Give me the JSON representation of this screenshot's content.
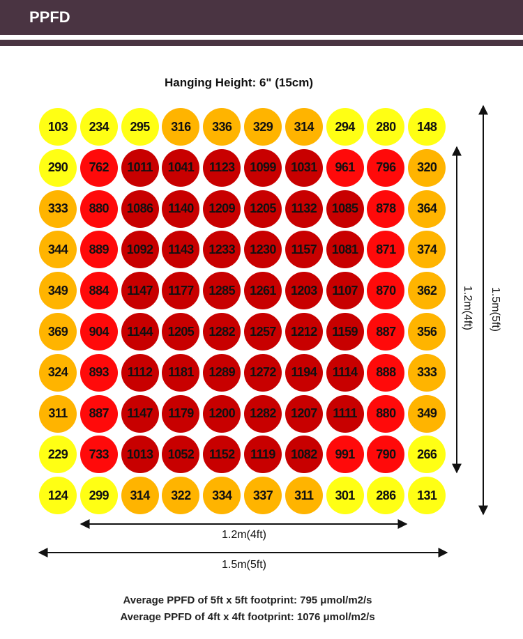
{
  "header": {
    "title": "PPFD"
  },
  "colors": {
    "header_bg": "#4a3442",
    "low": "#ffff14",
    "mid": "#ffb400",
    "high": "#ff0a0a",
    "very_high": "#c80000"
  },
  "chart_data": {
    "type": "heatmap",
    "title": "Hanging Height: 6\" (15cm)",
    "rows": [
      [
        103,
        234,
        295,
        316,
        336,
        329,
        314,
        294,
        280,
        148
      ],
      [
        290,
        762,
        1011,
        1041,
        1123,
        1099,
        1031,
        961,
        796,
        320
      ],
      [
        333,
        880,
        1086,
        1140,
        1209,
        1205,
        1132,
        1085,
        878,
        364
      ],
      [
        344,
        889,
        1092,
        1143,
        1233,
        1230,
        1157,
        1081,
        871,
        374
      ],
      [
        349,
        884,
        1147,
        1177,
        1285,
        1261,
        1203,
        1107,
        870,
        362
      ],
      [
        369,
        904,
        1144,
        1205,
        1282,
        1257,
        1212,
        1159,
        887,
        356
      ],
      [
        324,
        893,
        1112,
        1181,
        1289,
        1272,
        1194,
        1114,
        888,
        333
      ],
      [
        311,
        887,
        1147,
        1179,
        1200,
        1282,
        1207,
        1111,
        880,
        349
      ],
      [
        229,
        733,
        1013,
        1052,
        1152,
        1119,
        1082,
        991,
        790,
        266
      ],
      [
        124,
        299,
        314,
        322,
        334,
        337,
        311,
        301,
        286,
        131
      ]
    ],
    "dimensions": {
      "inner_horizontal": "1.2m(4ft)",
      "outer_horizontal": "1.5m(5ft)",
      "inner_vertical": "1.2m(4ft)",
      "outer_vertical": "1.5m(5ft)"
    },
    "averages": [
      "Average PPFD of 5ft x 5ft footprint: 795 μmol/m2/s",
      "Average PPFD of 4ft x 4ft footprint: 1076 μmol/m2/s"
    ]
  }
}
